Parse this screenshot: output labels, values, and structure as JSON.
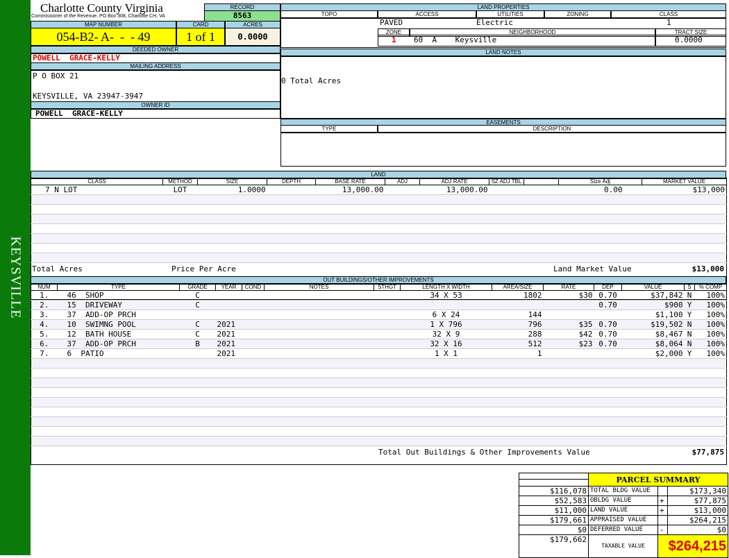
{
  "sidebar": {
    "label": "KEYSVILLE"
  },
  "header": {
    "title": "Charlotte County Virginia",
    "subtitle": "Commissioner of the Revenue, PO Box 308, Charlotte CH, VA",
    "record_label": "RECORD",
    "record": "8563",
    "map_label": "MAP NUMBER",
    "map": "054-B2- A-  -  - 49",
    "card_label": "CARD",
    "card": "1 of 1",
    "acres_label": "ACRES",
    "acres": "0.0000"
  },
  "owner": {
    "deeded_label": "DEEDED OWNER",
    "deeded": "POWELL  GRACE-KELLY",
    "mailing_label": "MAILING ADDRESS",
    "address1": "P O BOX 21",
    "address2": "KEYSVILLE, VA 23947-3947",
    "id_label": "OWNER ID",
    "id": "POWELL  GRACE-KELLY"
  },
  "land_properties": {
    "title": "LAND PROPERTIES",
    "topo_label": "TOPO",
    "access_label": "ACCESS",
    "utilities_label": "UTILITIES",
    "zoning_label": "ZONING",
    "class_label": "CLASS",
    "access": "PAVED",
    "utilities": "Electric",
    "class": "1",
    "zone_label": "ZONE",
    "neighborhood_label": "NEIGHBORHOOD",
    "tract_label": "TRACT SIZE",
    "zone": "1",
    "neighborhood": "60  A    Keysville",
    "tract": "0.0000"
  },
  "land_notes": {
    "title": "LAND NOTES",
    "text": "0 Total Acres"
  },
  "easements": {
    "title": "EASEMENTS",
    "type_label": "TYPE",
    "desc_label": "DESCRIPTION"
  },
  "land": {
    "title": "LAND",
    "columns": [
      "CLASS",
      "METHOD",
      "SIZE",
      "DEPTH",
      "BASE RATE",
      "ADJ",
      "ADJ RATE",
      "SZ ADJ TBL",
      "",
      "Size Adj",
      "MARKET VALUE"
    ],
    "rows": [
      [
        "7 N LOT",
        "LOT",
        "1.0000",
        "",
        "13,000.00",
        "",
        "13,000.00",
        "",
        "",
        "0.00",
        "$13,000"
      ]
    ],
    "total_acres_label": "Total Acres",
    "price_per_acre_label": "Price Per Acre",
    "market_label": "Land Market Value",
    "market_total": "$13,000"
  },
  "outbuildings": {
    "title": "OUT BUILDINGS/OTHER IMPROVEMENTS",
    "columns": [
      "NUM",
      "TYPE",
      "GRADE",
      "YEAR",
      "COND",
      "NOTES",
      "STHGT",
      "LENGTH X WIDTH",
      "AREA/SIZE",
      "RATE",
      "DEP",
      "VALUE",
      "S",
      "% COMP"
    ],
    "rows": [
      [
        "1.",
        "46  SHOP",
        "C",
        "",
        "",
        "",
        "",
        "34 X 53",
        "1802",
        "$30",
        "0.70",
        "$37,842",
        "N",
        "100%"
      ],
      [
        "2.",
        "15  DRIVEWAY",
        "C",
        "",
        "",
        "",
        "",
        "",
        "",
        "",
        "0.70",
        "$900",
        "Y",
        "100%"
      ],
      [
        "3.",
        "37  ADD-OP PRCH",
        "",
        "",
        "",
        "",
        "",
        "6 X 24",
        "144",
        "",
        "",
        "$1,100",
        "Y",
        "100%"
      ],
      [
        "4.",
        "10  SWIMNG POOL",
        "C",
        "2021",
        "",
        "",
        "",
        "1 X 796",
        "796",
        "$35",
        "0.70",
        "$19,502",
        "N",
        "100%"
      ],
      [
        "5.",
        "12  BATH HOUSE",
        "C",
        "2021",
        "",
        "",
        "",
        "32 X 9",
        "288",
        "$42",
        "0.70",
        "$8,467",
        "N",
        "100%"
      ],
      [
        "6.",
        "37  ADD-OP PRCH",
        "B",
        "2021",
        "",
        "",
        "",
        "32 X 16",
        "512",
        "$23",
        "0.70",
        "$8,064",
        "N",
        "100%"
      ],
      [
        "7.",
        "6  PATIO",
        "",
        "2021",
        "",
        "",
        "",
        "1 X 1",
        "1",
        "",
        "",
        "$2,000",
        "Y",
        "100%"
      ]
    ],
    "total_label": "Total Out Buildings & Other Improvements Value",
    "total": "$77,875"
  },
  "summary": {
    "title": "PARCEL SUMMARY",
    "rows": [
      {
        "prev": "$116,078",
        "label": "TOTAL BLDG VALUE",
        "op": "",
        "value": "$173,340"
      },
      {
        "prev": "$52,583",
        "label": "OBLDG VALUE",
        "op": "+",
        "value": "$77,875"
      },
      {
        "prev": "$11,000",
        "label": "LAND VALUE",
        "op": "+",
        "value": "$13,000"
      },
      {
        "prev": "$179,661",
        "label": "APPRAISED VALUE",
        "op": "",
        "value": "$264,215"
      },
      {
        "prev": "$0",
        "label": "DEFERRED VALUE",
        "op": "-",
        "value": "$0"
      }
    ],
    "taxable_prev": "$179,662",
    "taxable_label": "TAXABLE VALUE",
    "taxable": "$264,215"
  },
  "colors": {
    "sidebar": "#0a7a0a",
    "header": "#a8d4e6",
    "highlight": "#ffff00",
    "record": "#8ee08e",
    "red": "#e00000"
  }
}
